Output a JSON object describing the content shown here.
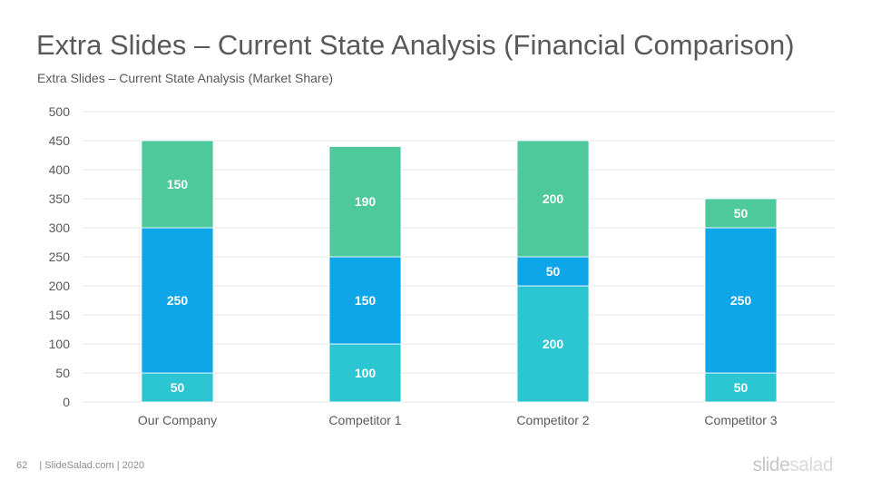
{
  "slide": {
    "title": "Extra Slides – Current State Analysis (Financial Comparison)",
    "subtitle": "Extra Slides – Current State Analysis (Market Share)"
  },
  "footer": {
    "page_number": "62",
    "source": "| SlideSalad.com | 2020"
  },
  "logo": {
    "part1": "slide",
    "part2": "salad"
  },
  "colors": {
    "series1": "#2cc6d3",
    "series2": "#0ea5e9",
    "series3": "#4ec99c",
    "grid": "#e4e4e4",
    "text": "#595959"
  },
  "chart_data": {
    "type": "bar",
    "stacked": true,
    "categories": [
      "Our Company",
      "Competitor  1",
      "Competitor  2",
      "Competitor 3"
    ],
    "series": [
      {
        "values": [
          50,
          100,
          200,
          50
        ]
      },
      {
        "values": [
          250,
          150,
          50,
          250
        ]
      },
      {
        "values": [
          150,
          190,
          200,
          50
        ]
      }
    ],
    "ylim": [
      0,
      500
    ],
    "yticks": [
      "0",
      "50",
      "100",
      "150",
      "200",
      "250",
      "300",
      "350",
      "400",
      "450",
      "500"
    ],
    "grid": true,
    "data_labels": true
  }
}
